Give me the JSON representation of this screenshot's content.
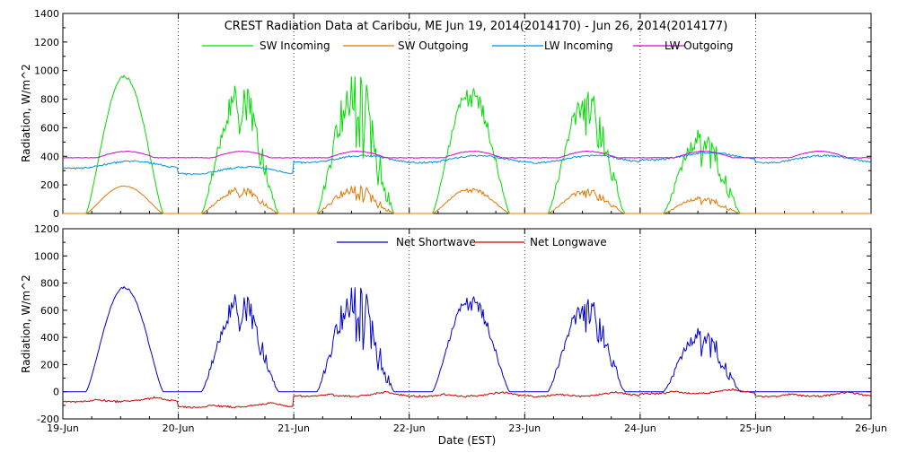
{
  "chart_data": [
    {
      "type": "line",
      "title": "CREST Radiation Data at Caribou, ME   Jun 19, 2014(2014170) - Jun 26, 2014(2014177)",
      "xlabel": "",
      "ylabel": "Radiation, W/m^2",
      "xlim": [
        0,
        7
      ],
      "ylim": [
        0,
        1400
      ],
      "yticks": [
        "0",
        "200",
        "400",
        "600",
        "800",
        "1000",
        "1200",
        "1400"
      ],
      "grid": "dotted-vertical",
      "legend_position": "top",
      "x_unit": "days since 19-Jun 00:00 (EST)",
      "day_peaks_sw_in": [
        970,
        930,
        1030,
        900,
        880,
        600
      ],
      "series": [
        {
          "name": "SW Incoming",
          "color": "#00dd00"
        },
        {
          "name": "SW Outgoing",
          "color": "#e07800"
        },
        {
          "name": "LW Incoming",
          "color": "#0090e0"
        },
        {
          "name": "LW Outgoing",
          "color": "#d000d0"
        }
      ]
    },
    {
      "type": "line",
      "title": "",
      "xlabel": "Date (EST)",
      "ylabel": "Radiation, W/m^2",
      "xlim": [
        0,
        7
      ],
      "ylim": [
        -200,
        1200
      ],
      "yticks": [
        "-200",
        "0",
        "200",
        "400",
        "600",
        "800",
        "1000",
        "1200"
      ],
      "xticks": [
        "19-Jun",
        "20-Jun",
        "21-Jun",
        "22-Jun",
        "23-Jun",
        "24-Jun",
        "25-Jun",
        "26-Jun"
      ],
      "grid": "dotted-vertical",
      "legend_position": "top",
      "series": [
        {
          "name": "Net Shortwave",
          "color": "#0000cc"
        },
        {
          "name": "Net Longwave",
          "color": "#cc0000"
        }
      ]
    }
  ]
}
